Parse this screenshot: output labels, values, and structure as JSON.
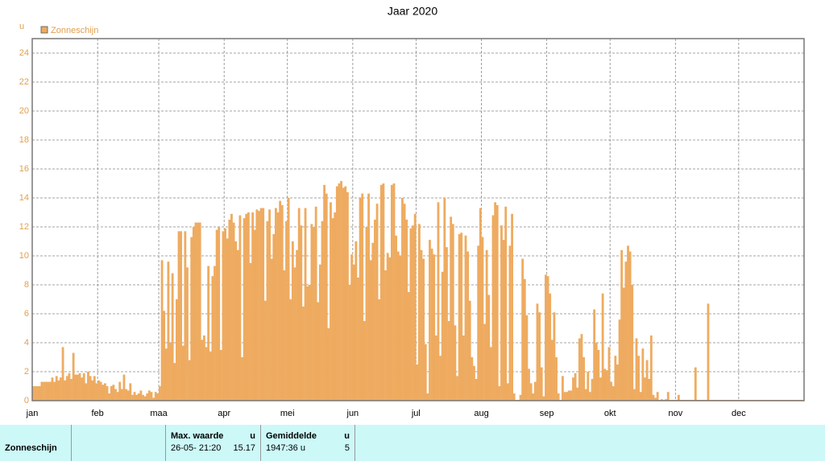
{
  "chart_data": {
    "type": "bar",
    "title": "Jaar 2020",
    "y_label": "u",
    "series": [
      {
        "name": "Zonneschijn",
        "color": "#eeab60",
        "values": [
          1,
          1,
          1,
          1,
          1.3,
          1.3,
          1.3,
          1.3,
          1.3,
          1.6,
          1.3,
          1.7,
          1.4,
          1.6,
          3.7,
          1.4,
          1.7,
          1.9,
          1.5,
          3.3,
          1.8,
          1.8,
          1.9,
          1.6,
          1.9,
          1.2,
          2,
          1.7,
          1.4,
          1.7,
          1.2,
          1.4,
          1.3,
          1.1,
          1.2,
          1,
          0.5,
          1,
          1.1,
          0.8,
          0.6,
          1.3,
          0.8,
          1.8,
          0.8,
          0.7,
          1.2,
          0.4,
          0.6,
          0.4,
          0.5,
          0.7,
          0.4,
          0.3,
          0.5,
          0.7,
          0.6,
          0.2,
          0.6,
          0.5,
          1,
          9.7,
          6.2,
          3.6,
          9.6,
          4,
          8.8,
          2.6,
          7,
          11.7,
          11.7,
          3.8,
          11.7,
          9.2,
          2.8,
          11.3,
          12,
          12.3,
          12.3,
          12.3,
          4.2,
          4.5,
          3.7,
          9.3,
          3.4,
          8.6,
          9.3,
          11.8,
          12,
          3.5,
          11.7,
          11.9,
          11.2,
          12.5,
          12.9,
          12.3,
          11,
          10.4,
          12.8,
          3,
          12.6,
          12.9,
          13,
          9.5,
          13,
          11.8,
          13.2,
          13.1,
          13.3,
          13.3,
          6.9,
          12.4,
          13.2,
          9.8,
          11.5,
          13.3,
          13,
          13.8,
          13.5,
          9,
          12.4,
          14,
          7,
          11,
          9.2,
          10.4,
          13.3,
          12.1,
          6.5,
          13.3,
          7.9,
          8,
          12.2,
          12,
          13.4,
          6.8,
          9.4,
          12.4,
          14.9,
          14.3,
          5,
          13.7,
          12.6,
          13,
          14.8,
          15,
          15.17,
          14.7,
          14.8,
          14.4,
          8,
          10.1,
          9.4,
          11,
          8.5,
          14,
          14.3,
          5.5,
          12,
          14.3,
          9.7,
          10.9,
          12.5,
          13.6,
          7,
          14.9,
          15,
          9,
          10.2,
          9.9,
          14.9,
          15,
          11.4,
          10.3,
          10,
          14,
          13.6,
          12.5,
          7.5,
          11.9,
          12.1,
          12.9,
          2.5,
          12.2,
          10.4,
          9.8,
          3.9,
          0.5,
          11.1,
          10.5,
          10.1,
          4.5,
          13.7,
          3.1,
          8.9,
          14,
          10.6,
          5.5,
          12.7,
          12.2,
          5.2,
          1.7,
          11.5,
          11.6,
          4.5,
          11.4,
          10.3,
          6.9,
          3,
          2.4,
          1.5,
          10.7,
          13.3,
          11.3,
          5.3,
          10.4,
          7.3,
          3.7,
          12.8,
          13.7,
          13.5,
          1,
          12.1,
          11.1,
          13.4,
          1.2,
          10.7,
          12.9,
          0.5,
          0,
          0,
          0.4,
          9.8,
          8.4,
          5.9,
          2.2,
          1.2,
          0.5,
          1.3,
          6.7,
          6.1,
          2.3,
          0.3,
          8.7,
          8.6,
          7.4,
          4.2,
          6.1,
          3,
          0.5,
          0,
          1.7,
          0.6,
          0.6,
          0.7,
          0.7,
          1.6,
          1.9,
          0.9,
          4.3,
          4.6,
          3,
          0.8,
          2,
          0.6,
          1.5,
          6.3,
          4,
          3.5,
          1.6,
          7.4,
          2.2,
          2.1,
          3.7,
          1.3,
          1,
          3.1,
          2.5,
          5.6,
          10.4,
          7.8,
          9.6,
          10.7,
          10.3,
          8,
          0.8,
          4.3,
          3.1,
          0.6,
          3.6,
          1.6,
          2.8,
          1.5,
          4.5,
          0.4,
          0.2,
          0.6,
          0,
          0.1,
          0,
          0.1,
          0.6,
          0,
          0,
          0,
          0,
          0.4,
          0,
          0,
          0,
          0,
          0,
          0,
          0,
          2.3,
          0,
          0,
          0,
          0,
          0,
          6.7,
          0,
          0,
          0,
          0,
          0,
          0,
          0,
          0,
          0,
          0,
          0,
          0,
          0,
          0,
          0,
          0,
          0,
          0,
          0,
          0,
          0,
          0,
          0,
          0,
          0,
          0,
          0,
          0,
          0,
          0,
          0,
          0,
          0,
          0,
          0,
          0,
          0,
          0,
          0,
          0,
          0,
          0,
          0,
          0,
          0
        ]
      }
    ],
    "xlim": [
      0,
      366
    ],
    "xticks": [
      {
        "value": 0,
        "label": "jan"
      },
      {
        "value": 31,
        "label": "feb"
      },
      {
        "value": 60,
        "label": "maa"
      },
      {
        "value": 91,
        "label": "apr"
      },
      {
        "value": 121,
        "label": "mei"
      },
      {
        "value": 152,
        "label": "jun"
      },
      {
        "value": 182,
        "label": "jul"
      },
      {
        "value": 213,
        "label": "aug"
      },
      {
        "value": 244,
        "label": "sep"
      },
      {
        "value": 274,
        "label": "okt"
      },
      {
        "value": 305,
        "label": "nov"
      },
      {
        "value": 335,
        "label": "dec"
      }
    ],
    "ylim": [
      0,
      24
    ],
    "yticks": [
      0,
      2,
      4,
      6,
      8,
      10,
      12,
      14,
      16,
      18,
      20,
      22,
      24
    ],
    "grid": true,
    "legend": "top-left"
  },
  "table": {
    "header": [
      "Max. waarde",
      "u",
      "Gemiddelde",
      "u"
    ],
    "rows": [
      [
        "Zonneschijn",
        "26-05- 21:20",
        "15.17",
        "1947:36 u",
        "5"
      ]
    ]
  }
}
